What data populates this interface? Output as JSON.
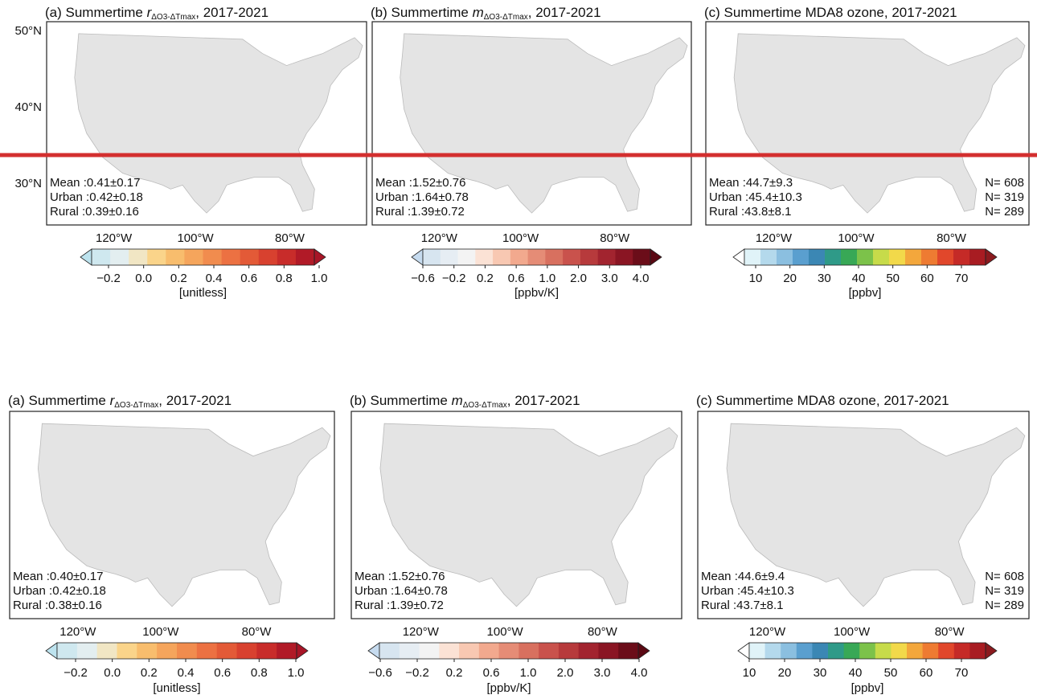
{
  "rows": [
    {
      "panels": [
        {
          "title": {
            "prefix": "(a) Summertime ",
            "symbol": "r",
            "sub": "ΔO3-ΔTmax",
            "suffix": ", 2017-2021"
          },
          "lat_labels": [
            "50°N",
            "40°N",
            "30°N"
          ],
          "lon_labels": [
            "120°W",
            "100°W",
            "80°W"
          ],
          "stats": {
            "mean": "Mean :0.41±0.17",
            "urban": "Urban :0.42±0.18",
            "rural": "Rural  :0.39±0.16"
          },
          "colorbar": {
            "ticks": [
              "−0.2",
              "0.0",
              "0.2",
              "0.4",
              "0.6",
              "0.8",
              "1.0"
            ],
            "unit": "[unitless]",
            "colors": [
              "#bde3ee",
              "#cfe8ef",
              "#e3eef0",
              "#f1e6c4",
              "#fad48a",
              "#f8bd6d",
              "#f5a55c",
              "#f18c4e",
              "#ec7142",
              "#e35a37",
              "#d8412f",
              "#c82c2a",
              "#b11a27",
              "#a81527"
            ]
          }
        },
        {
          "title": {
            "prefix": "(b) Summertime ",
            "symbol": "m",
            "sub": "ΔO3-ΔTmax",
            "suffix": ", 2017-2021"
          },
          "lon_labels": [
            "120°W",
            "100°W",
            "80°W"
          ],
          "stats": {
            "mean": "Mean :1.52±0.76",
            "urban": "Urban :1.64±0.78",
            "rural": "Rural  :1.39±0.72"
          },
          "colorbar": {
            "ticks": [
              "−0.6",
              "−0.2",
              "0.2",
              "0.6",
              "1.0",
              "2.0",
              "3.0",
              "4.0"
            ],
            "unit": "[ppbv/K]",
            "colors": [
              "#c6dbef",
              "#d7e5f0",
              "#e6edf3",
              "#f3f3f3",
              "#fbe2d5",
              "#f8c8b2",
              "#f2a98e",
              "#e58c76",
              "#d8705f",
              "#c9524c",
              "#b73a3c",
              "#a2242f",
              "#8a1523",
              "#6b0d19",
              "#5a0813"
            ]
          }
        },
        {
          "title": {
            "prefix": "(c) Summertime MDA8 ozone, 2017-2021"
          },
          "lon_labels": [
            "120°W",
            "100°W",
            "80°W"
          ],
          "stats": {
            "mean": "Mean :44.7±9.3",
            "urban": "Urban :45.4±10.3",
            "rural": "Rural  :43.8±8.1",
            "n": "N= 608",
            "n_urban": "N= 319",
            "n_rural": "N= 289"
          },
          "colorbar": {
            "ticks": [
              "10",
              "20",
              "30",
              "40",
              "50",
              "60",
              "70"
            ],
            "unit": "[ppbv]",
            "colors": [
              "#ffffff",
              "#e0f3f8",
              "#b4d9ec",
              "#8bbfe0",
              "#5a9fcf",
              "#3b87b4",
              "#2f9a88",
              "#38a856",
              "#7cc24a",
              "#c7db4a",
              "#f2d94a",
              "#f3a73c",
              "#ee7b32",
              "#e1472b",
              "#c52a27",
              "#a81c22",
              "#8b1a1e"
            ]
          }
        }
      ]
    },
    {
      "panels": [
        {
          "title": {
            "prefix": "(a) Summertime ",
            "symbol": "r",
            "sub": "ΔO3-ΔTmax",
            "suffix": ", 2017-2021"
          },
          "lon_labels": [
            "120°W",
            "100°W",
            "80°W"
          ],
          "stats": {
            "mean": "Mean :0.40±0.17",
            "urban": "Urban :0.42±0.18",
            "rural": "Rural  :0.38±0.16"
          },
          "colorbar": {
            "ticks": [
              "−0.2",
              "0.0",
              "0.2",
              "0.4",
              "0.6",
              "0.8",
              "1.0"
            ],
            "unit": "[unitless]",
            "colors": [
              "#bde3ee",
              "#cfe8ef",
              "#e3eef0",
              "#f1e6c4",
              "#fad48a",
              "#f8bd6d",
              "#f5a55c",
              "#f18c4e",
              "#ec7142",
              "#e35a37",
              "#d8412f",
              "#c82c2a",
              "#b11a27",
              "#a81527"
            ]
          }
        },
        {
          "title": {
            "prefix": "(b) Summertime ",
            "symbol": "m",
            "sub": "ΔO3-ΔTmax",
            "suffix": ", 2017-2021"
          },
          "lon_labels": [
            "120°W",
            "100°W",
            "80°W"
          ],
          "stats": {
            "mean": "Mean :1.52±0.76",
            "urban": "Urban :1.64±0.78",
            "rural": "Rural  :1.39±0.72"
          },
          "colorbar": {
            "ticks": [
              "−0.6",
              "−0.2",
              "0.2",
              "0.6",
              "1.0",
              "2.0",
              "3.0",
              "4.0"
            ],
            "unit": "[ppbv/K]",
            "colors": [
              "#c6dbef",
              "#d7e5f0",
              "#e6edf3",
              "#f3f3f3",
              "#fbe2d5",
              "#f8c8b2",
              "#f2a98e",
              "#e58c76",
              "#d8705f",
              "#c9524c",
              "#b73a3c",
              "#a2242f",
              "#8a1523",
              "#6b0d19",
              "#5a0813"
            ]
          }
        },
        {
          "title": {
            "prefix": "(c) Summertime MDA8 ozone, 2017-2021"
          },
          "lon_labels": [
            "120°W",
            "100°W",
            "80°W"
          ],
          "stats": {
            "mean": "Mean :44.6±9.4",
            "urban": "Urban :45.4±10.3",
            "rural": "Rural  :43.7±8.1",
            "n": "N= 608",
            "n_urban": "N= 319",
            "n_rural": "N= 289"
          },
          "colorbar": {
            "ticks": [
              "10",
              "20",
              "30",
              "40",
              "50",
              "60",
              "70"
            ],
            "unit": "[ppbv]",
            "colors": [
              "#ffffff",
              "#e0f3f8",
              "#b4d9ec",
              "#8bbfe0",
              "#5a9fcf",
              "#3b87b4",
              "#2f9a88",
              "#38a856",
              "#7cc24a",
              "#c7db4a",
              "#f2d94a",
              "#f3a73c",
              "#ee7b32",
              "#e1472b",
              "#c52a27",
              "#a81c22",
              "#8b1a1e"
            ]
          }
        }
      ]
    }
  ]
}
